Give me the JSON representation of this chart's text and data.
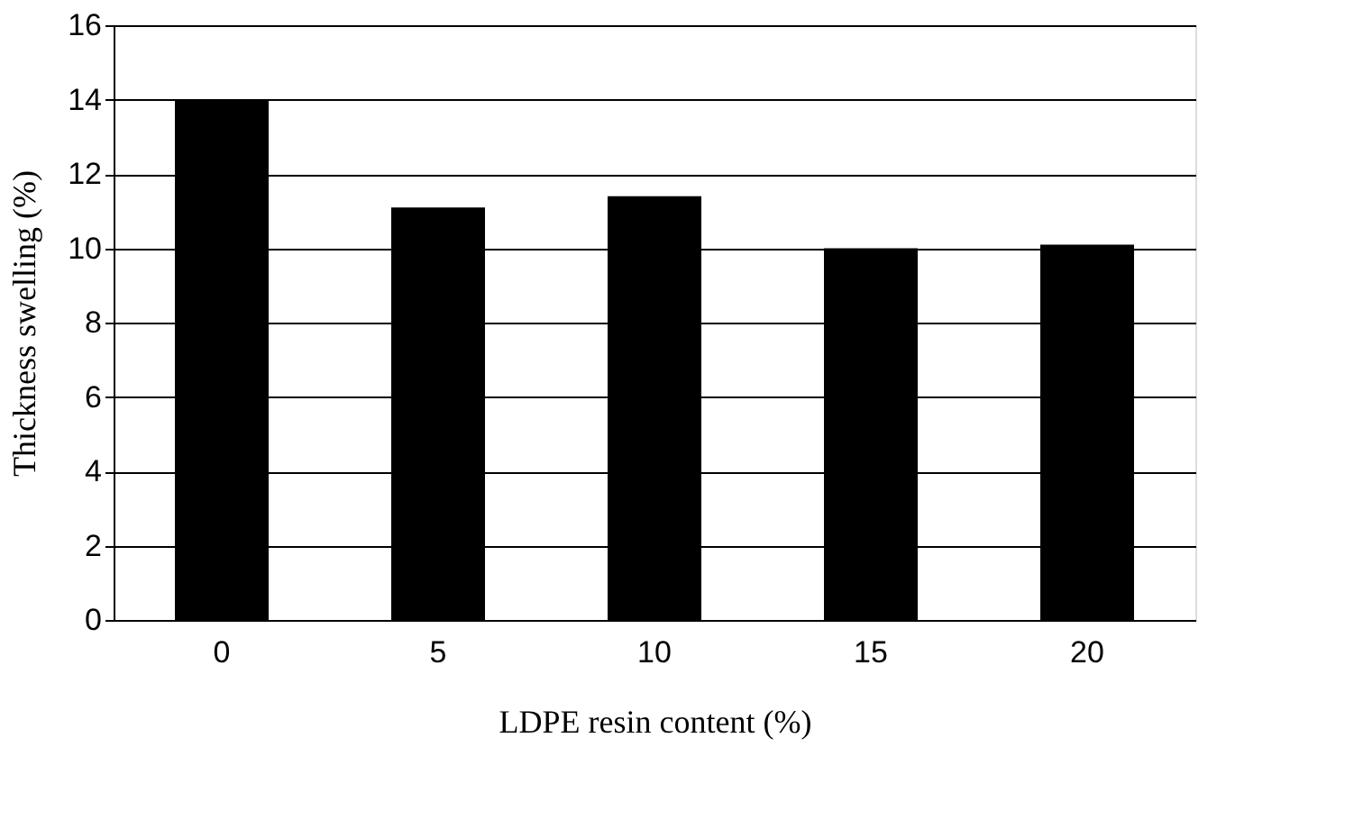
{
  "chart_data": {
    "type": "bar",
    "xlabel": "LDPE resin content (%)",
    "ylabel": "Thickness swelling (%)",
    "categories": [
      "0",
      "5",
      "10",
      "15",
      "20"
    ],
    "values": [
      14.0,
      11.1,
      11.4,
      10.0,
      10.1
    ],
    "color": "#000000",
    "ylim": [
      0,
      16
    ],
    "yticks": [
      0,
      2,
      4,
      6,
      8,
      10,
      12,
      14,
      16
    ],
    "grid": "y"
  }
}
